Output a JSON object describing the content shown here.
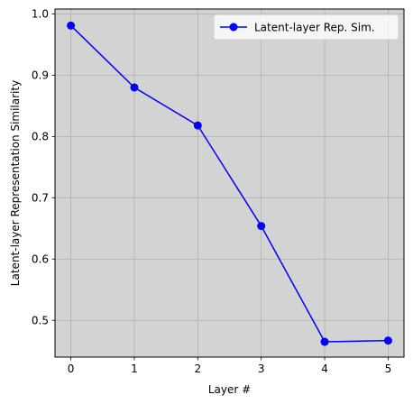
{
  "chart_data": {
    "type": "line",
    "title": "",
    "xlabel": "Layer #",
    "ylabel": "Latent-layer Representation Similarity",
    "x": [
      0,
      1,
      2,
      3,
      4,
      5
    ],
    "x_ticks": [
      "0",
      "1",
      "2",
      "3",
      "4",
      "5"
    ],
    "y_ticks": [
      "0.5",
      "0.6",
      "0.7",
      "0.8",
      "0.9",
      "1.0"
    ],
    "xlim": [
      -0.25,
      5.25
    ],
    "ylim": [
      0.44,
      1.008
    ],
    "grid": true,
    "background_color": "#d3d3d3",
    "legend_position": "top-right",
    "series": [
      {
        "name": "Latent-layer Rep. Sim.",
        "color": "#0000ff",
        "marker": "circle",
        "values": [
          0.981,
          0.88,
          0.818,
          0.654,
          0.465,
          0.467
        ]
      }
    ]
  }
}
